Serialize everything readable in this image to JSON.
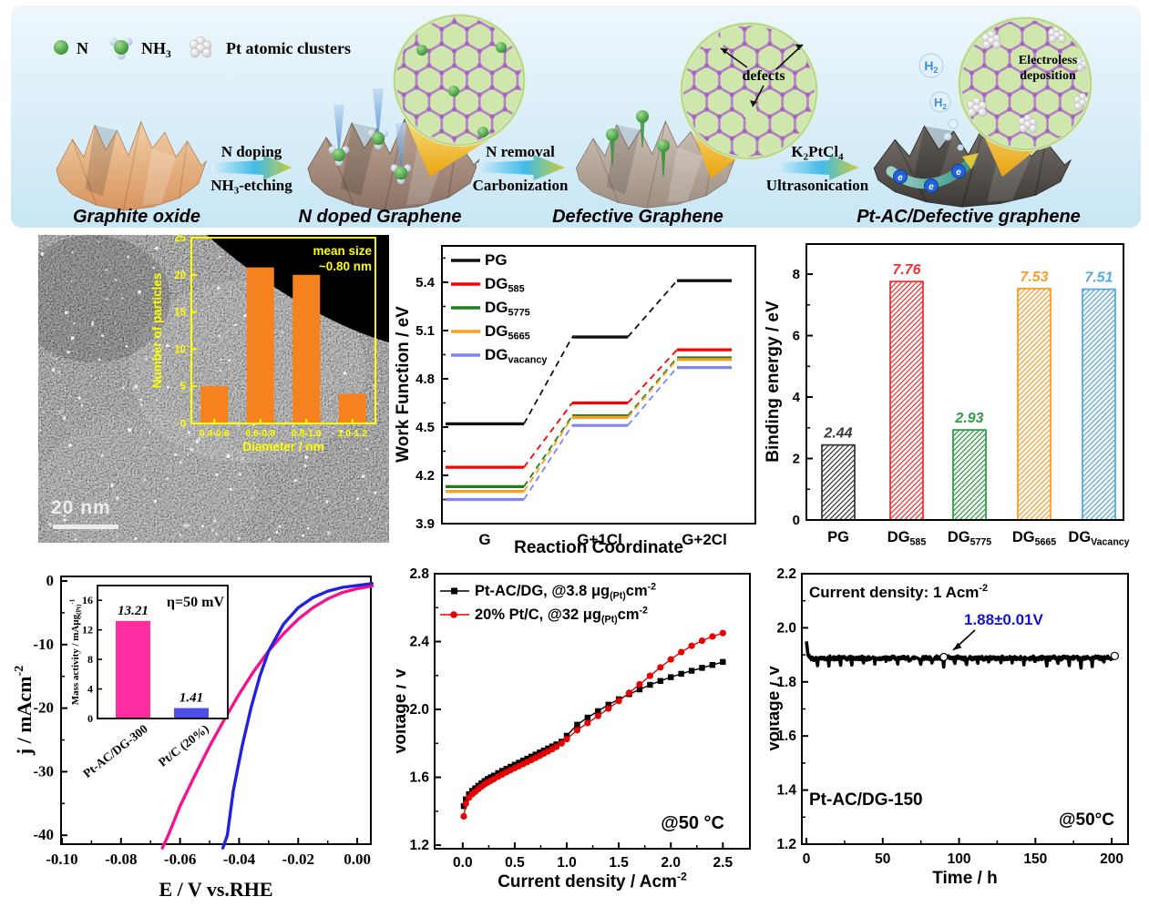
{
  "figure": {
    "scheme": {
      "legend": [
        {
          "icon": "n-atom-icon",
          "label": "N"
        },
        {
          "icon": "nh3-molecule-icon",
          "label": "NH[3]"
        },
        {
          "icon": "pt-cluster-icon",
          "label": "Pt atomic clusters"
        }
      ],
      "stages": [
        "Graphite oxide",
        "N doped Graphene",
        "Defective Graphene",
        "Pt-AC/Defective graphene"
      ],
      "arrows": [
        {
          "top": "N doping",
          "bottom": "NH[3]-etching"
        },
        {
          "top": "N removal",
          "bottom": "Carbonization"
        },
        {
          "top": "K[2]PtCl[4]",
          "bottom": "Ultrasonication"
        }
      ],
      "callouts": {
        "defects": "defects",
        "electroless_line1": "Electroless",
        "electroless_line2": "deposition",
        "h2": "H[2]",
        "electron": "e"
      }
    },
    "tem": {
      "scale_bar": "20 nm"
    }
  },
  "chart_data": [
    {
      "name": "particle_size_histogram",
      "type": "bar",
      "categories": [
        "0.4-0.6",
        "0.6-0.8",
        "0.8-1.0",
        "1.0-1.2"
      ],
      "values": [
        5,
        21,
        20,
        4
      ],
      "xlabel": "Diameter / nm",
      "ylabel": "Number of particles",
      "ylim": [
        0,
        25
      ],
      "yticks": [
        "0",
        "5",
        "10",
        "15",
        "20",
        "25"
      ],
      "annotation_line1": "mean size",
      "annotation_line2": "~0.80 nm",
      "bar_color": "#F5821F",
      "axis_color": "#FFFF00"
    },
    {
      "name": "work_function",
      "type": "step-line",
      "xlabel": "Reaction Coordinate",
      "ylabel": "Work Function / eV",
      "categories": [
        "G",
        "G+1Cl",
        "G+2Cl"
      ],
      "ylim": [
        3.9,
        5.626
      ],
      "yticks": [
        "3.9",
        "4.2",
        "4.5",
        "4.8",
        "5.1",
        "5.4"
      ],
      "legend_position": "top-left",
      "series": [
        {
          "name": "PG",
          "color": "#111111",
          "values": [
            4.52,
            5.06,
            5.41
          ]
        },
        {
          "name": "DG[585]",
          "color": "#FF0000",
          "values": [
            4.25,
            4.65,
            4.98
          ]
        },
        {
          "name": "DG[5775]",
          "color": "#1E7E1E",
          "values": [
            4.13,
            4.57,
            4.93
          ]
        },
        {
          "name": "DG[5665]",
          "color": "#FF9E1B",
          "values": [
            4.1,
            4.56,
            4.92
          ]
        },
        {
          "name": "DG[vacancy]",
          "color": "#7B86F0",
          "values": [
            4.05,
            4.51,
            4.87
          ]
        }
      ]
    },
    {
      "name": "binding_energy",
      "type": "bar",
      "ylabel": "Binding energy / eV",
      "ylim": [
        0,
        8.98
      ],
      "yticks": [
        "0",
        "2",
        "4",
        "6",
        "8"
      ],
      "categories": [
        "PG",
        "DG[585]",
        "DG[5775]",
        "DG[5665]",
        "DG[Vacancy]"
      ],
      "values": [
        2.44,
        7.76,
        2.93,
        7.53,
        7.51
      ],
      "value_labels": [
        "2.44",
        "7.76",
        "2.93",
        "7.53",
        "7.51"
      ],
      "colors": [
        "#3A3A3A",
        "#EE3333",
        "#2F9E44",
        "#F59F2F",
        "#58A8DE"
      ],
      "hatch": true
    },
    {
      "name": "her_polarization",
      "type": "line",
      "xlabel": "E / V vs.RHE",
      "ylabel": "j / mAcm{-2}",
      "xlim": [
        -0.1003,
        0.0046
      ],
      "xticks": [
        "-0.10",
        "-0.08",
        "-0.06",
        "-0.04",
        "-0.02",
        "0.00"
      ],
      "ylim": [
        0.72,
        -41.4
      ],
      "yticks": [
        "0",
        "-10",
        "-20",
        "-30",
        "-40"
      ],
      "series": [
        {
          "name": "Pt-AC/DG-300",
          "color": "#F5128F",
          "points": [
            [
              0.005,
              -0.8
            ],
            [
              0,
              -1.2
            ],
            [
              -0.005,
              -1.8
            ],
            [
              -0.01,
              -2.8
            ],
            [
              -0.015,
              -4.2
            ],
            [
              -0.02,
              -6.0
            ],
            [
              -0.025,
              -8.3
            ],
            [
              -0.03,
              -11.0
            ],
            [
              -0.035,
              -14.2
            ],
            [
              -0.04,
              -17.8
            ],
            [
              -0.045,
              -21.8
            ],
            [
              -0.05,
              -26.0
            ],
            [
              -0.055,
              -30.6
            ],
            [
              -0.06,
              -35.4
            ],
            [
              -0.064,
              -40
            ],
            [
              -0.066,
              -42
            ]
          ]
        },
        {
          "name": "Pt/C (20%)",
          "color": "#2222DD",
          "points": [
            [
              0.005,
              -0.4
            ],
            [
              0,
              -0.7
            ],
            [
              -0.005,
              -1.0
            ],
            [
              -0.01,
              -1.6
            ],
            [
              -0.015,
              -2.6
            ],
            [
              -0.02,
              -4.2
            ],
            [
              -0.025,
              -6.8
            ],
            [
              -0.03,
              -11.0
            ],
            [
              -0.033,
              -15.0
            ],
            [
              -0.036,
              -20.0
            ],
            [
              -0.039,
              -26.0
            ],
            [
              -0.042,
              -33.0
            ],
            [
              -0.044,
              -40
            ],
            [
              -0.0455,
              -42
            ]
          ]
        }
      ],
      "inset": {
        "type": "bar",
        "ylabel": "Mass activity / mAμg[(Pt)]{-1}",
        "annotation": "η=50 mV",
        "categories": [
          "Pt-AC/DG-300",
          "Pt/C (20%)"
        ],
        "values": [
          13.21,
          1.41
        ],
        "value_labels": [
          "13.21",
          "1.41"
        ],
        "colors": [
          "#FF2DA0",
          "#4D4DE8"
        ],
        "ylim": [
          0,
          18
        ],
        "yticks": [
          "0",
          "4",
          "8",
          "12",
          "16"
        ]
      }
    },
    {
      "name": "cell_polarization",
      "type": "scatter-line",
      "xlabel": "Current density / Acm{-2}",
      "ylabel": "Voltage / V",
      "annotation": "@50 °C",
      "xlim": [
        -0.27,
        2.76
      ],
      "xticks": [
        "0.0",
        "0.5",
        "1.0",
        "1.5",
        "2.0",
        "2.5"
      ],
      "ylim": [
        1.179,
        2.8
      ],
      "yticks": [
        "1.2",
        "1.6",
        "2.0",
        "2.4",
        "2.8"
      ],
      "x": [
        0.01,
        0.03,
        0.06,
        0.09,
        0.12,
        0.15,
        0.18,
        0.21,
        0.24,
        0.27,
        0.3,
        0.34,
        0.38,
        0.42,
        0.46,
        0.5,
        0.54,
        0.58,
        0.62,
        0.66,
        0.7,
        0.74,
        0.78,
        0.82,
        0.86,
        0.9,
        0.95,
        1.0,
        1.1,
        1.2,
        1.3,
        1.4,
        1.5,
        1.6,
        1.7,
        1.8,
        1.9,
        2.0,
        2.1,
        2.2,
        2.3,
        2.4,
        2.5
      ],
      "series": [
        {
          "name": "Pt-AC/DG, @3.8 μg[(Pt)]cm{-2}",
          "color": "#000000",
          "marker": "square",
          "y": [
            1.43,
            1.47,
            1.5,
            1.52,
            1.535,
            1.55,
            1.565,
            1.578,
            1.59,
            1.6,
            1.61,
            1.625,
            1.638,
            1.65,
            1.662,
            1.674,
            1.686,
            1.698,
            1.71,
            1.722,
            1.734,
            1.746,
            1.758,
            1.77,
            1.782,
            1.794,
            1.81,
            1.845,
            1.91,
            1.952,
            1.99,
            2.028,
            2.06,
            2.09,
            2.118,
            2.145,
            2.168,
            2.19,
            2.21,
            2.228,
            2.245,
            2.262,
            2.28
          ]
        },
        {
          "name": "20% Pt/C, @32 μg[(Pt)]cm{-2}",
          "color": "#E60000",
          "marker": "circle",
          "y": [
            1.37,
            1.445,
            1.48,
            1.5,
            1.515,
            1.53,
            1.545,
            1.558,
            1.57,
            1.58,
            1.59,
            1.604,
            1.617,
            1.63,
            1.642,
            1.654,
            1.666,
            1.678,
            1.69,
            1.702,
            1.714,
            1.727,
            1.74,
            1.753,
            1.766,
            1.78,
            1.8,
            1.825,
            1.878,
            1.92,
            1.962,
            2.005,
            2.05,
            2.098,
            2.148,
            2.198,
            2.248,
            2.295,
            2.338,
            2.375,
            2.405,
            2.43,
            2.45
          ]
        }
      ]
    },
    {
      "name": "stability",
      "type": "line",
      "xlabel": "Time / h",
      "ylabel": "Voltage / V",
      "xlim": [
        -3,
        210.7
      ],
      "xticks": [
        "0",
        "50",
        "100",
        "150",
        "200"
      ],
      "ylim": [
        1.2,
        2.2
      ],
      "yticks": [
        "1.2",
        "1.4",
        "1.6",
        "1.8",
        "2.0",
        "2.2"
      ],
      "annotations": {
        "condition": "Current density: 1 Acm{-2}",
        "voltage": "1.88±0.01V",
        "voltage_color": "#1414CC",
        "sample": "Pt-AC/DG-150",
        "temp": "@50°C"
      },
      "trace": {
        "base": 1.888,
        "start_spike": 1.95,
        "noise": 0.013,
        "dip_period": 7.5,
        "dip_depth": 0.04,
        "duration_h": 202
      },
      "open_markers": [
        [
          90,
          1.892
        ],
        [
          202,
          1.896
        ]
      ]
    }
  ]
}
